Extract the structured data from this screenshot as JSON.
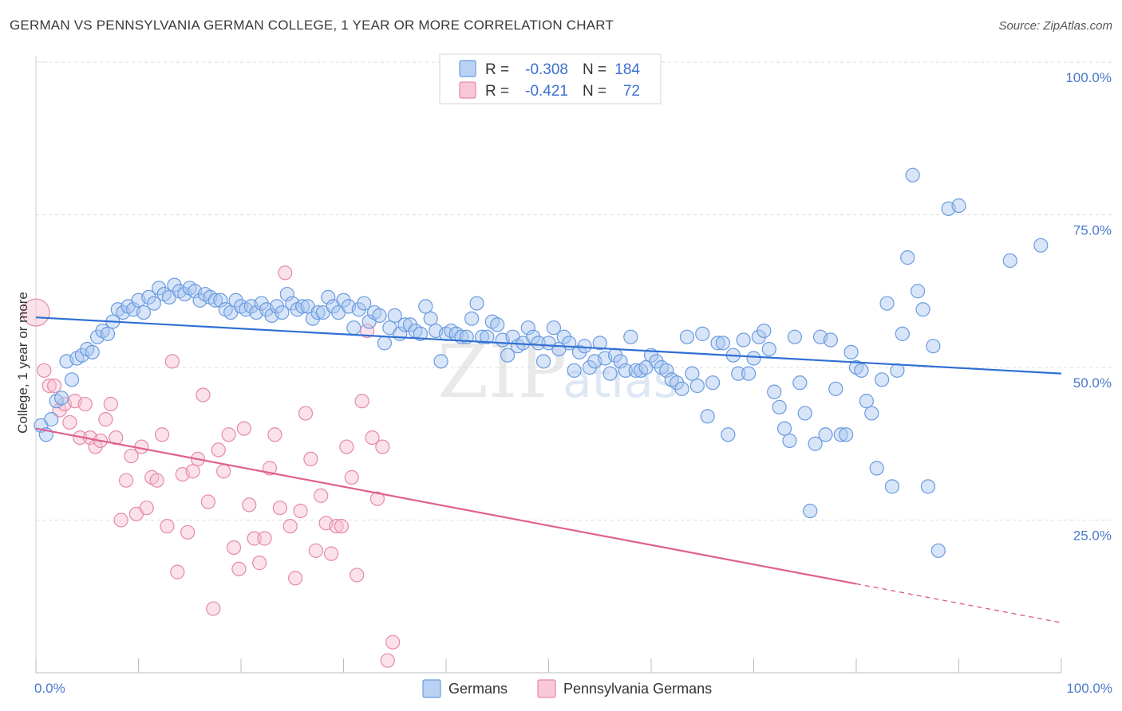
{
  "header": {
    "title": "GERMAN VS PENNSYLVANIA GERMAN COLLEGE, 1 YEAR OR MORE CORRELATION CHART",
    "source": "Source: ZipAtlas.com"
  },
  "colors": {
    "blue": "#6a9be0",
    "blue_fill": "#a9c6f0",
    "blue_line": "#2f6fd3",
    "pink": "#e58aa8",
    "pink_fill": "#f6bfd0",
    "pink_line": "#e06090",
    "grid": "#dcdcdc",
    "tick_text": "#4a78c9"
  },
  "chart_data": {
    "type": "scatter",
    "title": "GERMAN VS PENNSYLVANIA GERMAN COLLEGE, 1 YEAR OR MORE CORRELATION CHART",
    "xlabel": "",
    "ylabel": "College, 1 year or more",
    "xlim": [
      0,
      100
    ],
    "ylim": [
      0,
      100
    ],
    "x_tick_labels": [
      "0.0%",
      "100.0%"
    ],
    "y_ticks": [
      {
        "value": 25,
        "label": "25.0%"
      },
      {
        "value": 50,
        "label": "50.0%"
      },
      {
        "value": 75,
        "label": "75.0%"
      },
      {
        "value": 100,
        "label": "100.0%"
      }
    ],
    "watermark": {
      "zip": "ZIP",
      "atlas": "atlas"
    },
    "legend": [
      {
        "series": "Germans",
        "r_label": "R =",
        "r_value": "-0.308",
        "n_label": "N =",
        "n_value": "184"
      },
      {
        "series": "Pennsylvania Germans",
        "r_label": "R =",
        "r_value": "-0.421",
        "n_label": "N =",
        "n_value": "72"
      }
    ],
    "series": [
      {
        "name": "Germans",
        "trend": {
          "x0": 0,
          "y0": 58.2,
          "x1": 100,
          "y1": 49.0,
          "solid_until": 100
        },
        "points": [
          [
            0.5,
            40.5
          ],
          [
            1,
            39
          ],
          [
            1.5,
            41.5
          ],
          [
            2,
            44.5
          ],
          [
            2.5,
            45
          ],
          [
            3,
            51
          ],
          [
            3.5,
            48
          ],
          [
            4,
            51.5
          ],
          [
            4.5,
            52
          ],
          [
            5,
            53
          ],
          [
            5.5,
            52.5
          ],
          [
            6,
            55
          ],
          [
            6.5,
            56
          ],
          [
            7,
            55.5
          ],
          [
            7.5,
            57.5
          ],
          [
            8,
            59.5
          ],
          [
            8.5,
            59
          ],
          [
            9,
            60
          ],
          [
            9.5,
            59.5
          ],
          [
            10,
            61
          ],
          [
            10.5,
            59
          ],
          [
            11,
            61.5
          ],
          [
            11.5,
            60.5
          ],
          [
            12,
            63
          ],
          [
            12.5,
            62
          ],
          [
            13,
            61.5
          ],
          [
            13.5,
            63.5
          ],
          [
            14,
            62.5
          ],
          [
            14.5,
            62
          ],
          [
            15,
            63
          ],
          [
            15.5,
            62.5
          ],
          [
            16,
            61
          ],
          [
            16.5,
            62
          ],
          [
            17,
            61.5
          ],
          [
            17.5,
            61
          ],
          [
            18,
            61
          ],
          [
            18.5,
            59.5
          ],
          [
            19,
            59
          ],
          [
            19.5,
            61
          ],
          [
            20,
            60
          ],
          [
            20.5,
            59.5
          ],
          [
            21,
            60
          ],
          [
            21.5,
            59
          ],
          [
            22,
            60.5
          ],
          [
            22.5,
            59.5
          ],
          [
            23,
            58.5
          ],
          [
            23.5,
            60
          ],
          [
            24,
            59
          ],
          [
            24.5,
            62
          ],
          [
            25,
            60.5
          ],
          [
            25.5,
            59.5
          ],
          [
            26,
            60
          ],
          [
            26.5,
            60
          ],
          [
            27,
            58
          ],
          [
            27.5,
            59
          ],
          [
            28,
            59
          ],
          [
            28.5,
            61.5
          ],
          [
            29,
            60
          ],
          [
            29.5,
            59
          ],
          [
            30,
            61
          ],
          [
            30.5,
            60
          ],
          [
            31,
            56.5
          ],
          [
            31.5,
            59.5
          ],
          [
            32,
            60.5
          ],
          [
            32.5,
            57.5
          ],
          [
            33,
            59
          ],
          [
            33.5,
            58.5
          ],
          [
            34,
            54
          ],
          [
            34.5,
            56.5
          ],
          [
            35,
            58.5
          ],
          [
            35.5,
            55.5
          ],
          [
            36,
            57
          ],
          [
            36.5,
            57
          ],
          [
            37,
            56
          ],
          [
            37.5,
            55.5
          ],
          [
            38,
            60
          ],
          [
            38.5,
            58
          ],
          [
            39,
            56
          ],
          [
            39.5,
            51
          ],
          [
            40,
            55.5
          ],
          [
            40.5,
            56
          ],
          [
            41,
            55.5
          ],
          [
            41.5,
            55
          ],
          [
            42,
            55
          ],
          [
            42.5,
            58
          ],
          [
            43,
            60.5
          ],
          [
            43.5,
            55
          ],
          [
            44,
            55
          ],
          [
            44.5,
            57.5
          ],
          [
            45,
            57
          ],
          [
            45.5,
            54.5
          ],
          [
            46,
            52
          ],
          [
            46.5,
            55
          ],
          [
            47,
            53.5
          ],
          [
            47.5,
            54
          ],
          [
            48,
            56.5
          ],
          [
            48.5,
            55
          ],
          [
            49,
            54
          ],
          [
            49.5,
            51
          ],
          [
            50,
            54
          ],
          [
            50.5,
            56.5
          ],
          [
            51,
            53
          ],
          [
            51.5,
            55
          ],
          [
            52,
            54
          ],
          [
            52.5,
            49.5
          ],
          [
            53,
            52.5
          ],
          [
            53.5,
            53.5
          ],
          [
            54,
            50
          ],
          [
            54.5,
            51
          ],
          [
            55,
            54
          ],
          [
            55.5,
            51.5
          ],
          [
            56,
            49
          ],
          [
            56.5,
            52
          ],
          [
            57,
            51
          ],
          [
            57.5,
            49.5
          ],
          [
            58,
            55
          ],
          [
            58.5,
            49.5
          ],
          [
            59,
            49.5
          ],
          [
            59.5,
            50
          ],
          [
            60,
            52
          ],
          [
            60.5,
            51
          ],
          [
            61,
            50
          ],
          [
            61.5,
            49.5
          ],
          [
            62,
            48
          ],
          [
            62.5,
            47.5
          ],
          [
            63,
            46.5
          ],
          [
            63.5,
            55
          ],
          [
            64,
            49
          ],
          [
            64.5,
            47
          ],
          [
            65,
            55.5
          ],
          [
            65.5,
            42
          ],
          [
            66,
            47.5
          ],
          [
            66.5,
            54
          ],
          [
            67,
            54
          ],
          [
            67.5,
            39
          ],
          [
            68,
            52
          ],
          [
            68.5,
            49
          ],
          [
            69,
            54.5
          ],
          [
            69.5,
            49
          ],
          [
            70,
            51.5
          ],
          [
            70.5,
            55
          ],
          [
            71,
            56
          ],
          [
            71.5,
            53
          ],
          [
            72,
            46
          ],
          [
            72.5,
            43.5
          ],
          [
            73,
            40
          ],
          [
            73.5,
            38
          ],
          [
            74,
            55
          ],
          [
            74.5,
            47.5
          ],
          [
            75,
            42.5
          ],
          [
            75.5,
            26.5
          ],
          [
            76,
            37.5
          ],
          [
            76.5,
            55
          ],
          [
            77,
            39
          ],
          [
            77.5,
            54.5
          ],
          [
            78,
            46.5
          ],
          [
            78.5,
            39
          ],
          [
            79,
            39
          ],
          [
            79.5,
            52.5
          ],
          [
            80,
            50
          ],
          [
            80.5,
            49.5
          ],
          [
            81,
            44.5
          ],
          [
            81.5,
            42.5
          ],
          [
            82,
            33.5
          ],
          [
            82.5,
            48
          ],
          [
            83,
            60.5
          ],
          [
            83.5,
            30.5
          ],
          [
            84,
            49.5
          ],
          [
            84.5,
            55.5
          ],
          [
            85,
            68
          ],
          [
            85.5,
            81.5
          ],
          [
            86,
            62.5
          ],
          [
            86.5,
            59.5
          ],
          [
            87,
            30.5
          ],
          [
            87.5,
            53.5
          ],
          [
            88,
            20
          ],
          [
            89,
            76
          ],
          [
            90,
            76.5
          ],
          [
            95,
            67.5
          ],
          [
            98,
            70
          ]
        ]
      },
      {
        "name": "Pennsylvania Germans",
        "trend": {
          "x0": 0,
          "y0": 40.0,
          "x1": 100,
          "y1": 8.2,
          "solid_until": 80
        },
        "points": [
          [
            0,
            59
          ],
          [
            0.8,
            49.5
          ],
          [
            1.3,
            47
          ],
          [
            1.8,
            47
          ],
          [
            2.3,
            43
          ],
          [
            2.8,
            44
          ],
          [
            3.3,
            41
          ],
          [
            3.8,
            44.5
          ],
          [
            4.3,
            38.5
          ],
          [
            4.8,
            44
          ],
          [
            5.3,
            38.5
          ],
          [
            5.8,
            37
          ],
          [
            6.3,
            38
          ],
          [
            6.8,
            41.5
          ],
          [
            7.3,
            44
          ],
          [
            7.8,
            38.5
          ],
          [
            8.3,
            25
          ],
          [
            8.8,
            31.5
          ],
          [
            9.3,
            35.5
          ],
          [
            9.8,
            26
          ],
          [
            10.3,
            37
          ],
          [
            10.8,
            27
          ],
          [
            11.3,
            32
          ],
          [
            11.8,
            31.5
          ],
          [
            12.3,
            39
          ],
          [
            12.8,
            24
          ],
          [
            13.3,
            51
          ],
          [
            13.8,
            16.5
          ],
          [
            14.3,
            32.5
          ],
          [
            14.8,
            23
          ],
          [
            15.3,
            33
          ],
          [
            15.8,
            35
          ],
          [
            16.3,
            45.5
          ],
          [
            16.8,
            28
          ],
          [
            17.3,
            10.5
          ],
          [
            17.8,
            36.5
          ],
          [
            18.3,
            33
          ],
          [
            18.8,
            39
          ],
          [
            19.3,
            20.5
          ],
          [
            19.8,
            17
          ],
          [
            20.3,
            40
          ],
          [
            20.8,
            27.5
          ],
          [
            21.3,
            22
          ],
          [
            21.8,
            18
          ],
          [
            22.3,
            22
          ],
          [
            22.8,
            33.5
          ],
          [
            23.3,
            39
          ],
          [
            23.8,
            27
          ],
          [
            24.3,
            65.5
          ],
          [
            24.8,
            24
          ],
          [
            25.3,
            15.5
          ],
          [
            25.8,
            26.5
          ],
          [
            26.3,
            42.5
          ],
          [
            26.8,
            35
          ],
          [
            27.3,
            20
          ],
          [
            27.8,
            29
          ],
          [
            28.3,
            24.5
          ],
          [
            28.8,
            19.5
          ],
          [
            29.3,
            24
          ],
          [
            29.8,
            24
          ],
          [
            30.3,
            37
          ],
          [
            30.8,
            32
          ],
          [
            31.3,
            16
          ],
          [
            31.8,
            44.5
          ],
          [
            32.3,
            56
          ],
          [
            32.8,
            38.5
          ],
          [
            33.3,
            28.5
          ],
          [
            33.8,
            37
          ],
          [
            34.3,
            2
          ],
          [
            34.8,
            5
          ]
        ]
      }
    ]
  }
}
